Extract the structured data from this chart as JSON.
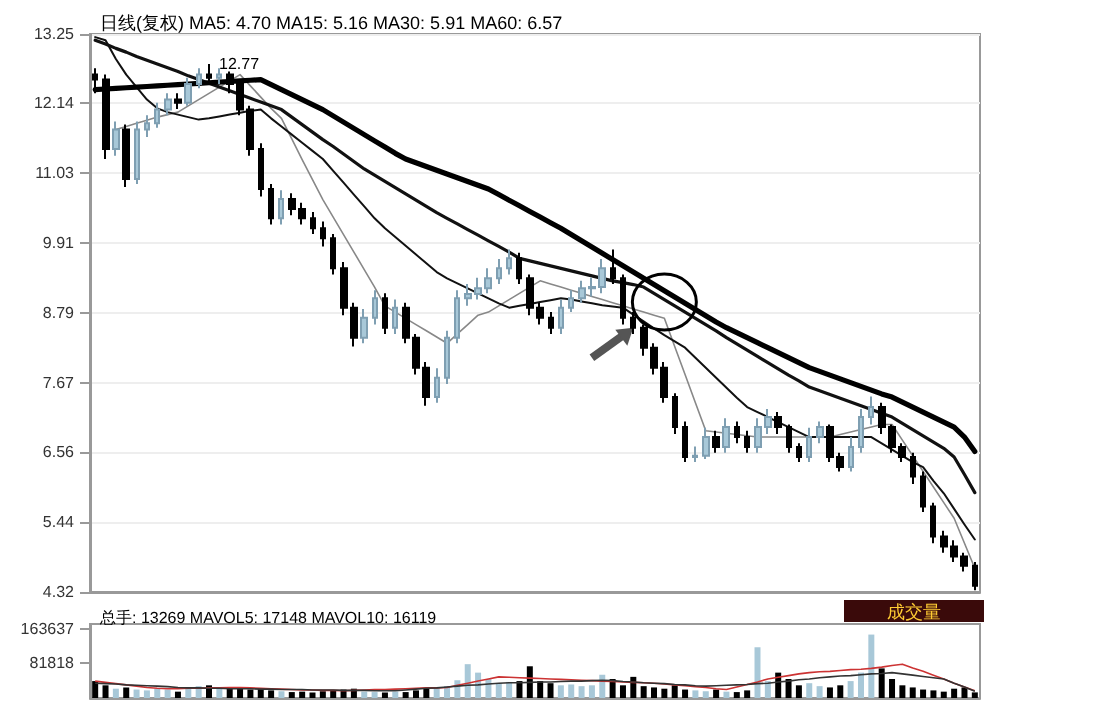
{
  "chart_data": [
    {
      "type": "candlestick",
      "title": "日线(复权) MA5: 4.70 MA15: 5.16 MA30: 5.91 MA60: 6.57",
      "categories": [
        null,
        null,
        null,
        null,
        null,
        null,
        null,
        null,
        null,
        null,
        null,
        null,
        null,
        null,
        null,
        null,
        null,
        null,
        null,
        null,
        null,
        null,
        null,
        null,
        null,
        null,
        null,
        null,
        null,
        null,
        null,
        null,
        null,
        null,
        null,
        null,
        null,
        null,
        null,
        null,
        null,
        null,
        null,
        null,
        null,
        null,
        null,
        null,
        null,
        null,
        null,
        null,
        null,
        null,
        null,
        null,
        null,
        null,
        null,
        null,
        null,
        null,
        null,
        null,
        null,
        null,
        null,
        null,
        null,
        null,
        null,
        null,
        null,
        null,
        null,
        null,
        null,
        null,
        null,
        null,
        null,
        null,
        null,
        null,
        null,
        null
      ],
      "ohlc": [
        [
          12.6,
          12.7,
          12.3,
          12.52
        ],
        [
          12.52,
          12.6,
          11.25,
          11.41
        ],
        [
          11.41,
          11.85,
          11.3,
          11.72
        ],
        [
          11.72,
          11.8,
          10.8,
          10.93
        ],
        [
          10.93,
          11.85,
          10.85,
          11.72
        ],
        [
          11.72,
          11.95,
          11.6,
          11.82
        ],
        [
          11.82,
          12.15,
          11.75,
          12.04
        ],
        [
          12.04,
          12.3,
          11.95,
          12.2
        ],
        [
          12.2,
          12.3,
          12.05,
          12.15
        ],
        [
          12.15,
          12.55,
          12.1,
          12.45
        ],
        [
          12.45,
          12.7,
          12.38,
          12.6
        ],
        [
          12.6,
          12.77,
          12.45,
          12.55
        ],
        [
          12.55,
          12.7,
          12.45,
          12.6
        ],
        [
          12.6,
          12.65,
          12.3,
          12.45
        ],
        [
          12.45,
          12.5,
          11.95,
          12.04
        ],
        [
          12.04,
          12.1,
          11.3,
          11.41
        ],
        [
          11.41,
          11.5,
          10.65,
          10.77
        ],
        [
          10.77,
          10.85,
          10.2,
          10.3
        ],
        [
          10.3,
          10.75,
          10.2,
          10.61
        ],
        [
          10.61,
          10.7,
          10.35,
          10.45
        ],
        [
          10.45,
          10.55,
          10.2,
          10.3
        ],
        [
          10.3,
          10.4,
          10.05,
          10.14
        ],
        [
          10.14,
          10.25,
          9.85,
          9.98
        ],
        [
          9.98,
          10.05,
          9.4,
          9.5
        ],
        [
          9.5,
          9.6,
          8.75,
          8.87
        ],
        [
          8.87,
          8.95,
          8.25,
          8.39
        ],
        [
          8.39,
          8.85,
          8.3,
          8.71
        ],
        [
          8.71,
          9.15,
          8.6,
          9.02
        ],
        [
          9.02,
          9.1,
          8.45,
          8.55
        ],
        [
          8.55,
          9.0,
          8.45,
          8.87
        ],
        [
          8.87,
          8.95,
          8.3,
          8.39
        ],
        [
          8.39,
          8.45,
          7.8,
          7.91
        ],
        [
          7.91,
          8.0,
          7.3,
          7.44
        ],
        [
          7.44,
          7.9,
          7.35,
          7.75
        ],
        [
          7.75,
          8.5,
          7.65,
          8.39
        ],
        [
          8.39,
          9.15,
          8.3,
          9.02
        ],
        [
          9.02,
          9.25,
          8.9,
          9.09
        ],
        [
          9.09,
          9.35,
          9.0,
          9.18
        ],
        [
          9.18,
          9.5,
          9.1,
          9.34
        ],
        [
          9.34,
          9.65,
          9.25,
          9.5
        ],
        [
          9.5,
          9.8,
          9.4,
          9.66
        ],
        [
          9.66,
          9.75,
          9.25,
          9.34
        ],
        [
          9.34,
          9.4,
          8.75,
          8.87
        ],
        [
          8.87,
          8.95,
          8.6,
          8.71
        ],
        [
          8.71,
          8.8,
          8.45,
          8.55
        ],
        [
          8.55,
          9.0,
          8.45,
          8.87
        ],
        [
          8.87,
          9.15,
          8.8,
          9.02
        ],
        [
          9.02,
          9.3,
          8.95,
          9.18
        ],
        [
          9.18,
          9.35,
          9.05,
          9.2
        ],
        [
          9.2,
          9.65,
          9.1,
          9.5
        ],
        [
          9.5,
          9.8,
          9.25,
          9.34
        ],
        [
          9.34,
          9.4,
          8.6,
          8.71
        ],
        [
          8.71,
          8.8,
          8.45,
          8.55
        ],
        [
          8.55,
          8.6,
          8.1,
          8.23
        ],
        [
          8.23,
          8.3,
          7.8,
          7.91
        ],
        [
          7.91,
          8.0,
          7.35,
          7.44
        ],
        [
          7.44,
          7.5,
          6.85,
          6.96
        ],
        [
          6.96,
          7.05,
          6.4,
          6.48
        ],
        [
          6.48,
          6.65,
          6.4,
          6.5
        ],
        [
          6.5,
          6.95,
          6.45,
          6.8
        ],
        [
          6.8,
          6.9,
          6.55,
          6.64
        ],
        [
          6.64,
          7.1,
          6.55,
          6.96
        ],
        [
          6.96,
          7.05,
          6.7,
          6.8
        ],
        [
          6.8,
          6.9,
          6.55,
          6.64
        ],
        [
          6.64,
          7.1,
          6.55,
          6.96
        ],
        [
          6.96,
          7.25,
          6.85,
          7.12
        ],
        [
          7.12,
          7.2,
          6.85,
          6.96
        ],
        [
          6.96,
          7.0,
          6.55,
          6.64
        ],
        [
          6.64,
          6.7,
          6.4,
          6.48
        ],
        [
          6.48,
          6.95,
          6.4,
          6.8
        ],
        [
          6.8,
          7.05,
          6.7,
          6.96
        ],
        [
          6.96,
          7.0,
          6.4,
          6.48
        ],
        [
          6.48,
          6.55,
          6.25,
          6.32
        ],
        [
          6.32,
          6.8,
          6.25,
          6.64
        ],
        [
          6.64,
          7.25,
          6.55,
          7.12
        ],
        [
          7.12,
          7.45,
          7.0,
          7.28
        ],
        [
          7.28,
          7.35,
          6.85,
          6.96
        ],
        [
          6.96,
          7.0,
          6.55,
          6.64
        ],
        [
          6.64,
          6.7,
          6.4,
          6.48
        ],
        [
          6.48,
          6.55,
          6.05,
          6.17
        ],
        [
          6.17,
          6.25,
          5.6,
          5.69
        ],
        [
          5.69,
          5.75,
          5.1,
          5.21
        ],
        [
          5.21,
          5.3,
          4.95,
          5.05
        ],
        [
          5.05,
          5.15,
          4.8,
          4.89
        ],
        [
          4.89,
          4.95,
          4.65,
          4.74
        ],
        [
          4.74,
          4.8,
          4.35,
          4.42
        ]
      ],
      "colors": [
        "#000000",
        "#000000",
        "#a8c8d8",
        "#000000",
        "#a8c8d8",
        "#a8c8d8",
        "#a8c8d8",
        "#a8c8d8",
        "#000000",
        "#a8c8d8",
        "#a8c8d8",
        "#000000",
        "#a8c8d8",
        "#000000",
        "#000000",
        "#000000",
        "#000000",
        "#000000",
        "#a8c8d8",
        "#000000",
        "#000000",
        "#000000",
        "#000000",
        "#000000",
        "#000000",
        "#000000",
        "#a8c8d8",
        "#a8c8d8",
        "#000000",
        "#a8c8d8",
        "#000000",
        "#000000",
        "#000000",
        "#a8c8d8",
        "#a8c8d8",
        "#a8c8d8",
        "#a8c8d8",
        "#a8c8d8",
        "#a8c8d8",
        "#a8c8d8",
        "#a8c8d8",
        "#000000",
        "#000000",
        "#000000",
        "#000000",
        "#a8c8d8",
        "#a8c8d8",
        "#a8c8d8",
        "#a8c8d8",
        "#a8c8d8",
        "#000000",
        "#000000",
        "#000000",
        "#000000",
        "#000000",
        "#000000",
        "#000000",
        "#000000",
        "#a8c8d8",
        "#a8c8d8",
        "#000000",
        "#a8c8d8",
        "#000000",
        "#000000",
        "#a8c8d8",
        "#a8c8d8",
        "#000000",
        "#000000",
        "#000000",
        "#a8c8d8",
        "#a8c8d8",
        "#000000",
        "#000000",
        "#a8c8d8",
        "#a8c8d8",
        "#a8c8d8",
        "#000000",
        "#000000",
        "#000000",
        "#000000",
        "#000000",
        "#000000",
        "#000000",
        "#000000",
        "#000000",
        "#000000"
      ],
      "series": [
        {
          "type": "line",
          "color": "#888888",
          "values": [
            null,
            null,
            11.72,
            11.77,
            11.82,
            11.87,
            11.92,
            11.96,
            12.0,
            12.1,
            12.2,
            12.3,
            12.4,
            12.5,
            12.6,
            12.42,
            12.24,
            12.06,
            11.9,
            11.57,
            11.24,
            10.92,
            10.6,
            10.32,
            10.04,
            9.76,
            9.48,
            9.2,
            8.9,
            8.8,
            8.7,
            8.6,
            8.5,
            8.4,
            8.3,
            8.45,
            8.6,
            8.75,
            8.8,
            8.9,
            9.0,
            9.1,
            9.2,
            9.3,
            9.25,
            9.2,
            9.15,
            9.1,
            9.05,
            9.0,
            8.95,
            8.9,
            8.85,
            8.8,
            8.75,
            8.7,
            8.25,
            7.8,
            7.35,
            6.9,
            6.88,
            6.86,
            6.84,
            6.82,
            6.8,
            6.8,
            6.8,
            6.8,
            6.8,
            6.8,
            6.8,
            6.8,
            6.84,
            6.88,
            6.92,
            6.96,
            7.0,
            7.0,
            6.75,
            6.5,
            6.25,
            6.0,
            5.75,
            5.5,
            5.1,
            4.7
          ]
        },
        {
          "type": "line",
          "color": "#111111",
          "values": [
            13.2,
            13.15,
            12.85,
            12.6,
            12.4,
            12.2,
            12.06,
            12.0,
            11.96,
            11.92,
            11.88,
            11.9,
            11.93,
            11.96,
            11.99,
            12.02,
            12.04,
            11.9,
            11.77,
            11.64,
            11.51,
            11.38,
            11.25,
            11.06,
            10.87,
            10.68,
            10.49,
            10.3,
            10.14,
            10.0,
            9.86,
            9.72,
            9.58,
            9.44,
            9.34,
            9.26,
            9.18,
            9.1,
            9.02,
            8.94,
            8.87,
            8.9,
            8.93,
            8.96,
            8.99,
            9.02,
            9.0,
            8.97,
            8.94,
            8.91,
            8.89,
            8.87,
            8.76,
            8.65,
            8.54,
            8.43,
            8.33,
            8.23,
            8.07,
            7.91,
            7.75,
            7.59,
            7.43,
            7.28,
            7.2,
            7.12,
            7.04,
            6.96,
            6.88,
            6.8,
            6.8,
            6.8,
            6.8,
            6.8,
            6.8,
            6.8,
            6.7,
            6.6,
            6.5,
            6.4,
            6.32,
            6.1,
            5.9,
            5.65,
            5.4,
            5.16
          ]
        },
        {
          "type": "line",
          "color": "#111111",
          "values": [
            13.15,
            13.09,
            13.02,
            12.96,
            12.89,
            12.83,
            12.77,
            12.71,
            12.65,
            12.58,
            12.52,
            12.46,
            12.4,
            12.34,
            12.28,
            12.22,
            12.16,
            12.1,
            12.04,
            11.92,
            11.8,
            11.68,
            11.56,
            11.45,
            11.33,
            11.21,
            11.09,
            10.99,
            10.89,
            10.79,
            10.69,
            10.59,
            10.49,
            10.39,
            10.3,
            10.21,
            10.12,
            10.03,
            9.94,
            9.85,
            9.76,
            9.66,
            9.62,
            9.58,
            9.54,
            9.5,
            9.46,
            9.42,
            9.38,
            9.34,
            9.3,
            9.27,
            9.24,
            9.2,
            9.1,
            9.0,
            8.9,
            8.8,
            8.7,
            8.6,
            8.5,
            8.39,
            8.29,
            8.19,
            8.09,
            7.99,
            7.89,
            7.79,
            7.7,
            7.6,
            7.54,
            7.48,
            7.42,
            7.36,
            7.3,
            7.24,
            7.18,
            7.12,
            7.02,
            6.92,
            6.82,
            6.72,
            6.62,
            6.48,
            6.2,
            5.91
          ]
        },
        {
          "type": "line",
          "color": "#000000",
          "values": [
            12.36,
            12.37,
            12.38,
            12.39,
            12.4,
            12.41,
            12.42,
            12.43,
            12.44,
            12.45,
            12.46,
            12.47,
            12.48,
            12.49,
            12.5,
            12.51,
            12.52,
            12.44,
            12.36,
            12.28,
            12.2,
            12.12,
            12.04,
            11.94,
            11.84,
            11.74,
            11.64,
            11.54,
            11.44,
            11.34,
            11.25,
            11.19,
            11.13,
            11.07,
            11.01,
            10.95,
            10.89,
            10.83,
            10.77,
            10.68,
            10.59,
            10.5,
            10.41,
            10.32,
            10.23,
            10.14,
            10.04,
            9.94,
            9.84,
            9.74,
            9.64,
            9.54,
            9.44,
            9.34,
            9.24,
            9.14,
            9.04,
            8.94,
            8.84,
            8.74,
            8.64,
            8.55,
            8.47,
            8.39,
            8.31,
            8.23,
            8.15,
            8.07,
            7.99,
            7.91,
            7.85,
            7.79,
            7.73,
            7.67,
            7.61,
            7.55,
            7.49,
            7.44,
            7.36,
            7.28,
            7.2,
            7.12,
            7.04,
            6.96,
            6.8,
            6.57
          ]
        }
      ],
      "ylim": [
        4.32,
        13.25
      ],
      "yticks": [
        4.32,
        5.44,
        6.56,
        7.67,
        8.79,
        9.91,
        11.03,
        12.14,
        13.25
      ],
      "tick_labels": "y",
      "grid": "y",
      "annotations": [
        "12.77"
      ]
    },
    {
      "type": "bar",
      "title": "总手: 13269 MAVOL5: 17148 MAVOL10: 16119",
      "categories": [
        null,
        null,
        null,
        null,
        null,
        null,
        null,
        null,
        null,
        null,
        null,
        null,
        null,
        null,
        null,
        null,
        null,
        null,
        null,
        null,
        null,
        null,
        null,
        null,
        null,
        null,
        null,
        null,
        null,
        null,
        null,
        null,
        null,
        null,
        null,
        null,
        null,
        null,
        null,
        null,
        null,
        null,
        null,
        null,
        null,
        null,
        null,
        null,
        null,
        null,
        null,
        null,
        null,
        null,
        null,
        null,
        null,
        null,
        null,
        null,
        null,
        null,
        null,
        null,
        null,
        null,
        null,
        null,
        null,
        null,
        null,
        null,
        null,
        null,
        null,
        null,
        null,
        null,
        null,
        null,
        null,
        null,
        null,
        null,
        null,
        null
      ],
      "values": [
        40000,
        30000,
        22000,
        25000,
        20000,
        18000,
        22000,
        20000,
        15000,
        26000,
        28000,
        30000,
        22000,
        25000,
        24000,
        20000,
        22000,
        18000,
        16000,
        14000,
        15000,
        13000,
        16000,
        18000,
        20000,
        22000,
        15000,
        14000,
        13000,
        15000,
        14000,
        18000,
        22000,
        24000,
        28000,
        42000,
        80000,
        60000,
        45000,
        35000,
        38000,
        40000,
        75000,
        40000,
        35000,
        30000,
        32000,
        28000,
        30000,
        55000,
        45000,
        30000,
        50000,
        28000,
        25000,
        22000,
        30000,
        20000,
        18000,
        16000,
        20000,
        15000,
        14000,
        18000,
        120000,
        40000,
        60000,
        45000,
        30000,
        35000,
        28000,
        25000,
        30000,
        40000,
        60000,
        150000,
        70000,
        45000,
        30000,
        25000,
        20000,
        18000,
        15000,
        22000,
        25000,
        13269
      ],
      "colors": [
        "#000000",
        "#000000",
        "#a8c8d8",
        "#000000",
        "#a8c8d8",
        "#a8c8d8",
        "#a8c8d8",
        "#a8c8d8",
        "#000000",
        "#a8c8d8",
        "#a8c8d8",
        "#000000",
        "#a8c8d8",
        "#000000",
        "#000000",
        "#000000",
        "#000000",
        "#000000",
        "#a8c8d8",
        "#000000",
        "#000000",
        "#000000",
        "#000000",
        "#000000",
        "#000000",
        "#000000",
        "#a8c8d8",
        "#a8c8d8",
        "#000000",
        "#a8c8d8",
        "#000000",
        "#000000",
        "#000000",
        "#a8c8d8",
        "#a8c8d8",
        "#a8c8d8",
        "#a8c8d8",
        "#a8c8d8",
        "#a8c8d8",
        "#a8c8d8",
        "#a8c8d8",
        "#000000",
        "#000000",
        "#000000",
        "#000000",
        "#a8c8d8",
        "#a8c8d8",
        "#a8c8d8",
        "#a8c8d8",
        "#a8c8d8",
        "#000000",
        "#000000",
        "#000000",
        "#000000",
        "#000000",
        "#000000",
        "#000000",
        "#000000",
        "#a8c8d8",
        "#a8c8d8",
        "#000000",
        "#a8c8d8",
        "#000000",
        "#000000",
        "#a8c8d8",
        "#a8c8d8",
        "#000000",
        "#000000",
        "#000000",
        "#a8c8d8",
        "#a8c8d8",
        "#000000",
        "#000000",
        "#a8c8d8",
        "#a8c8d8",
        "#a8c8d8",
        "#000000",
        "#000000",
        "#000000",
        "#000000",
        "#000000",
        "#000000",
        "#000000",
        "#000000",
        "#000000",
        "#000000"
      ],
      "series": [
        {
          "type": "line",
          "color": "#cc3333",
          "values": [
            40000,
            37000,
            34000,
            31000,
            28000,
            25000,
            23000,
            22000,
            22000,
            23000,
            23000,
            24000,
            24000,
            25000,
            25000,
            24000,
            23000,
            22000,
            21000,
            20000,
            19000,
            19000,
            18000,
            18000,
            17000,
            18000,
            19000,
            20000,
            20000,
            21000,
            22000,
            23000,
            24000,
            24000,
            25000,
            30000,
            35000,
            40000,
            45000,
            50000,
            49000,
            48000,
            47000,
            46000,
            45000,
            44000,
            43000,
            42000,
            41000,
            40000,
            39000,
            38000,
            37000,
            36000,
            35000,
            33000,
            31000,
            29000,
            27000,
            25000,
            22000,
            20000,
            26000,
            32000,
            38000,
            45000,
            49000,
            53000,
            57000,
            60000,
            62000,
            63000,
            65000,
            67000,
            68000,
            70000,
            73000,
            77000,
            80000,
            71000,
            63000,
            54000,
            45000,
            35000,
            26000,
            17148
          ]
        },
        {
          "type": "line",
          "color": "#333333",
          "values": [
            35000,
            34000,
            33000,
            31000,
            30000,
            29000,
            28000,
            27000,
            25000,
            24000,
            24000,
            23000,
            23000,
            22000,
            22000,
            22000,
            21000,
            21000,
            20000,
            20000,
            20000,
            19000,
            19000,
            19000,
            18000,
            18000,
            18000,
            17000,
            17000,
            17000,
            19000,
            21000,
            23000,
            24000,
            26000,
            28000,
            30000,
            31000,
            33000,
            35000,
            36000,
            36000,
            37000,
            38000,
            38000,
            39000,
            40000,
            40000,
            41000,
            42000,
            41000,
            39000,
            38000,
            36000,
            35000,
            34000,
            32000,
            31000,
            29000,
            28000,
            29000,
            30000,
            31000,
            32000,
            34000,
            35000,
            38000,
            40000,
            43000,
            45000,
            48000,
            50000,
            52000,
            53000,
            55000,
            57000,
            58000,
            60000,
            57000,
            54000,
            51000,
            48000,
            45000,
            35000,
            26000,
            16119
          ]
        }
      ],
      "ylim": [
        0,
        175000
      ],
      "yticks": [
        81818,
        163637
      ],
      "tick_labels": "y",
      "annotations": [
        "成交量"
      ]
    }
  ]
}
